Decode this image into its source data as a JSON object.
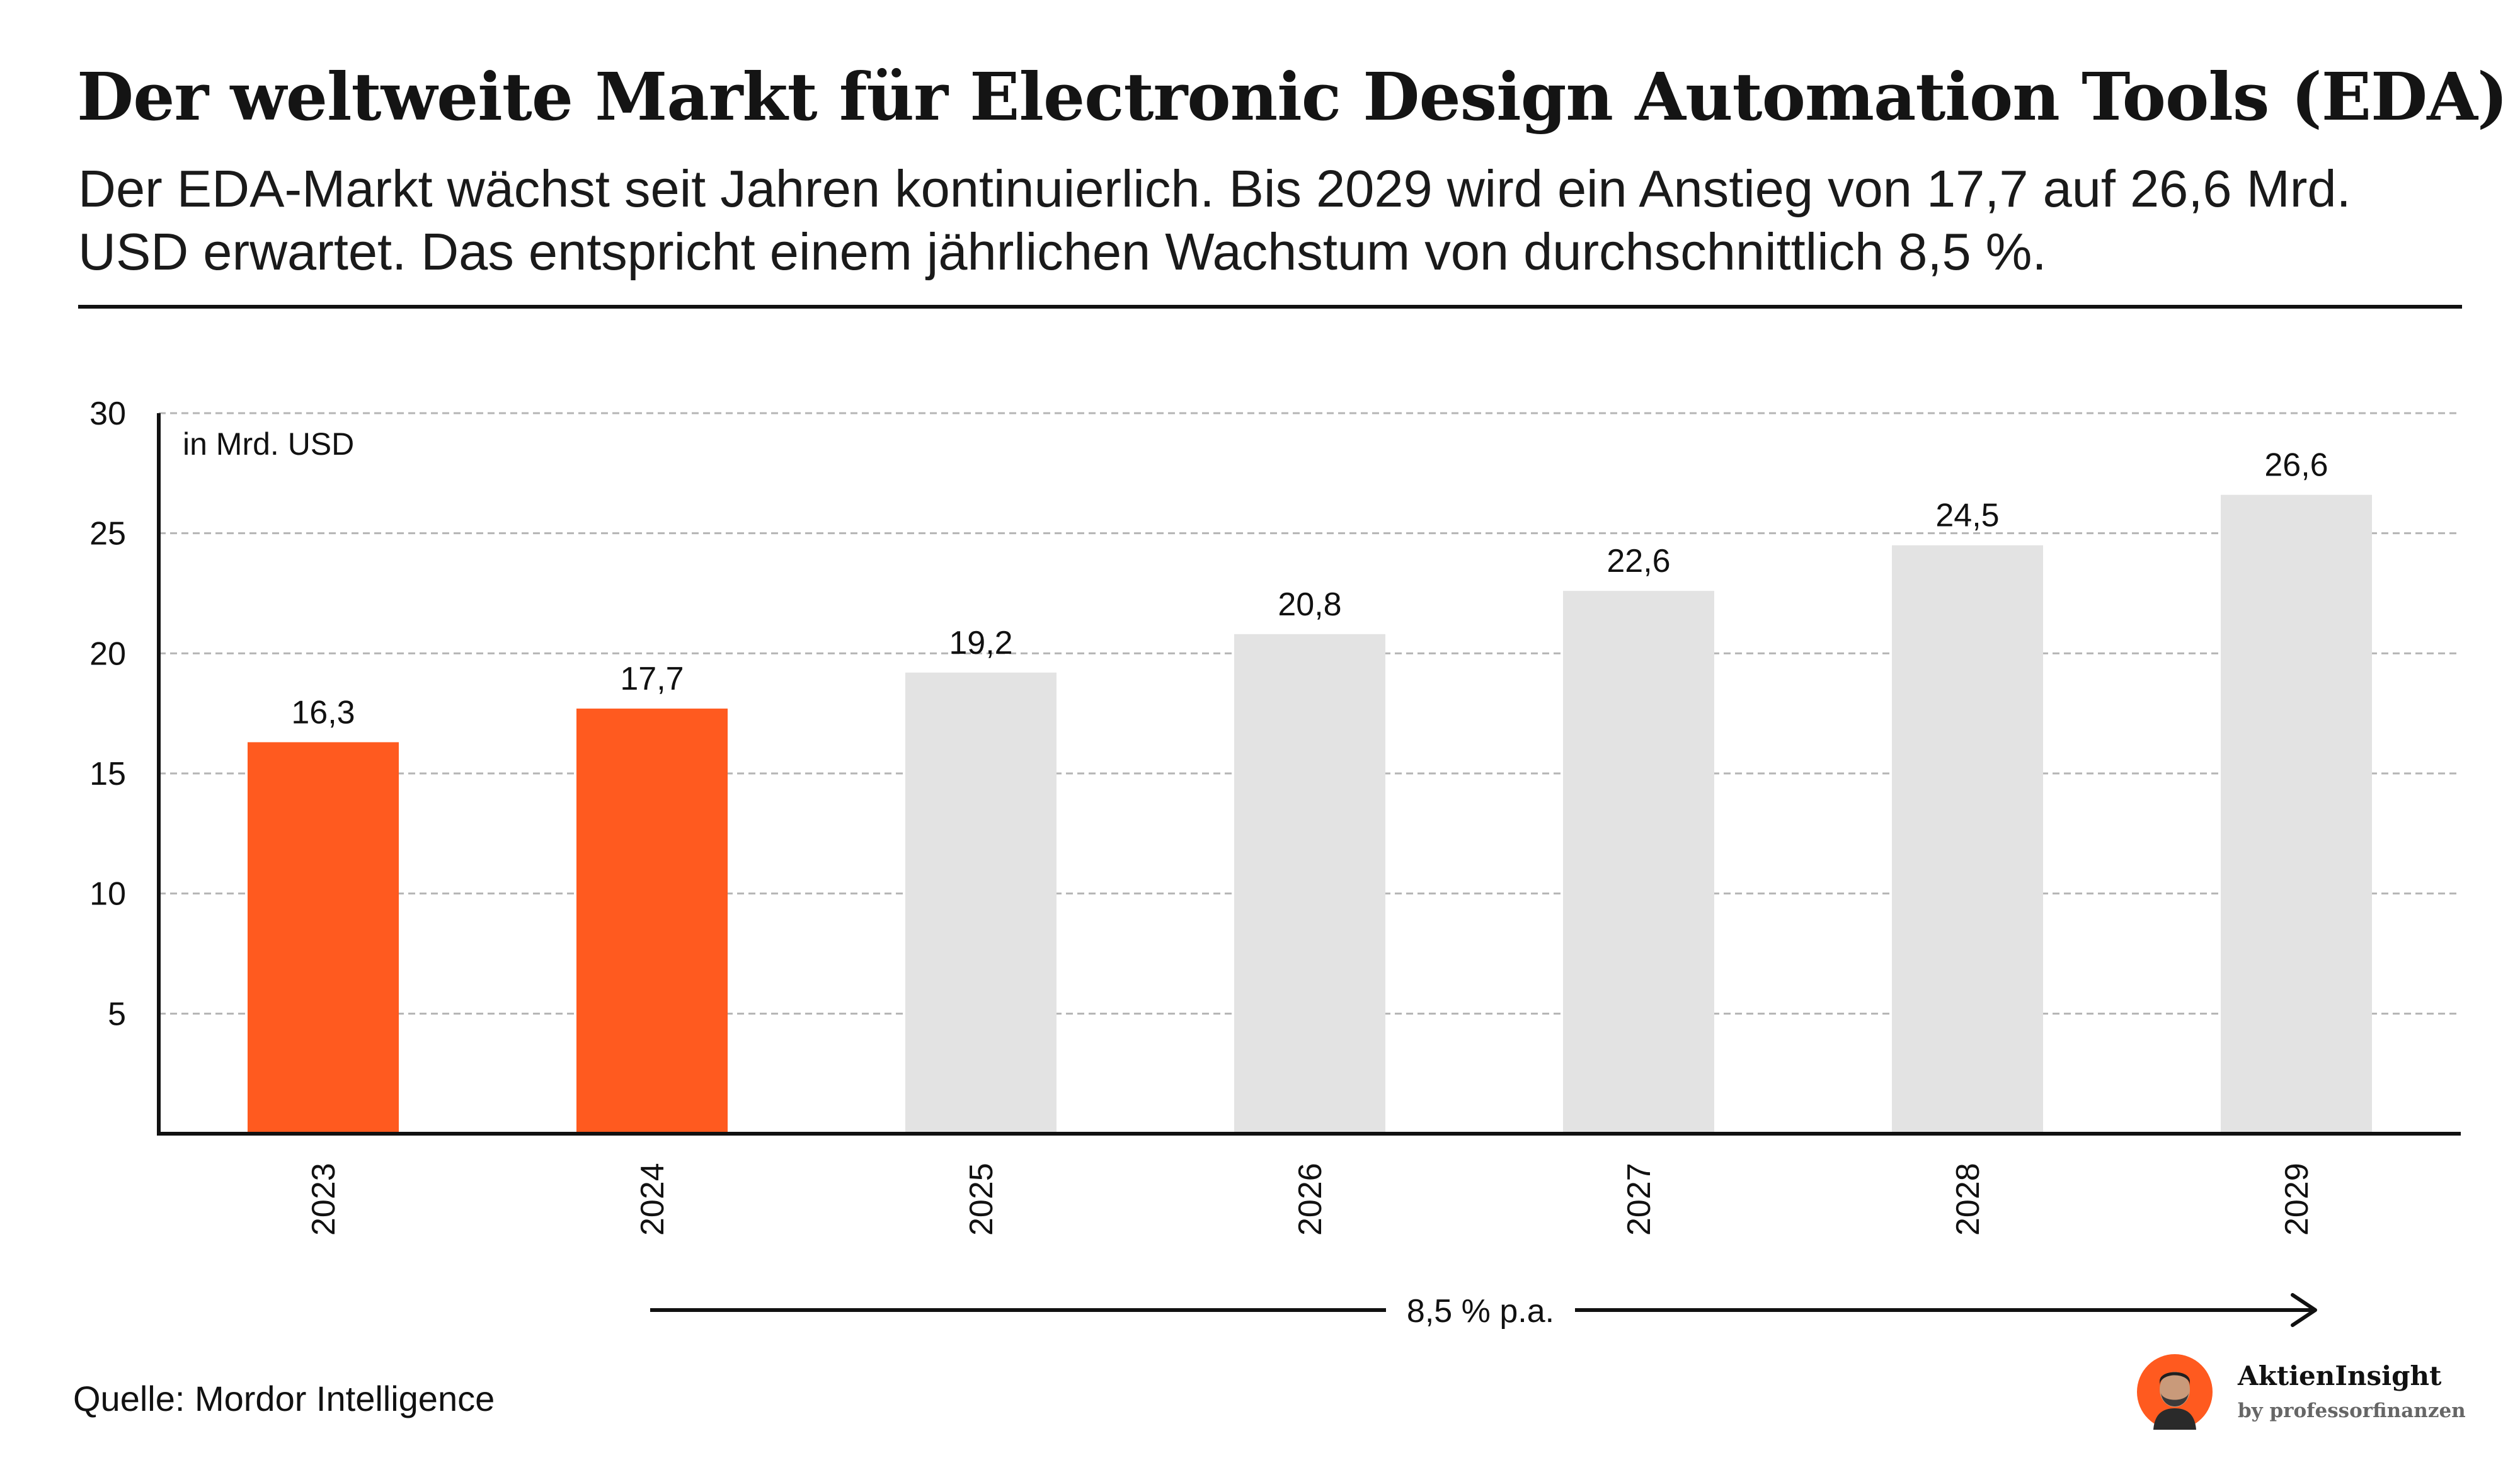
{
  "title": "Der weltweite Markt für Electronic Design Automation Tools (EDA)",
  "subtitle": "Der EDA-Markt wächst seit Jahren kontinuierlich. Bis 2029 wird ein Anstieg von 17,7 auf 26,6 Mrd. USD erwartet. Das entspricht einem jährlichen Wachstum von durchschnittlich 8,5 %.",
  "source": "Quelle: Mordor Intelligence",
  "brand": {
    "name": "AktienInsight",
    "byline": "by professorfinanzen",
    "icon": "avatar-icon"
  },
  "colors": {
    "actual": "#ff5a1f",
    "forecast": "#e3e3e3",
    "text": "#111111",
    "grid": "#b5b5b5"
  },
  "chart_data": {
    "type": "bar",
    "unit_label": "in Mrd. USD",
    "categories": [
      "2023",
      "2024",
      "2025",
      "2026",
      "2027",
      "2028",
      "2029"
    ],
    "values": [
      16.3,
      17.7,
      19.2,
      20.8,
      22.6,
      24.5,
      26.6
    ],
    "value_labels": [
      "16,3",
      "17,7",
      "19,2",
      "20,8",
      "22,6",
      "24,5",
      "26,6"
    ],
    "highlighted": [
      true,
      true,
      false,
      false,
      false,
      false,
      false
    ],
    "ylim": [
      0,
      30
    ],
    "yticks": [
      5,
      10,
      15,
      20,
      25,
      30
    ],
    "grid": true,
    "growth_annotation": {
      "label": "8,5 % p.a.",
      "from": "2024",
      "to": "2029"
    }
  }
}
